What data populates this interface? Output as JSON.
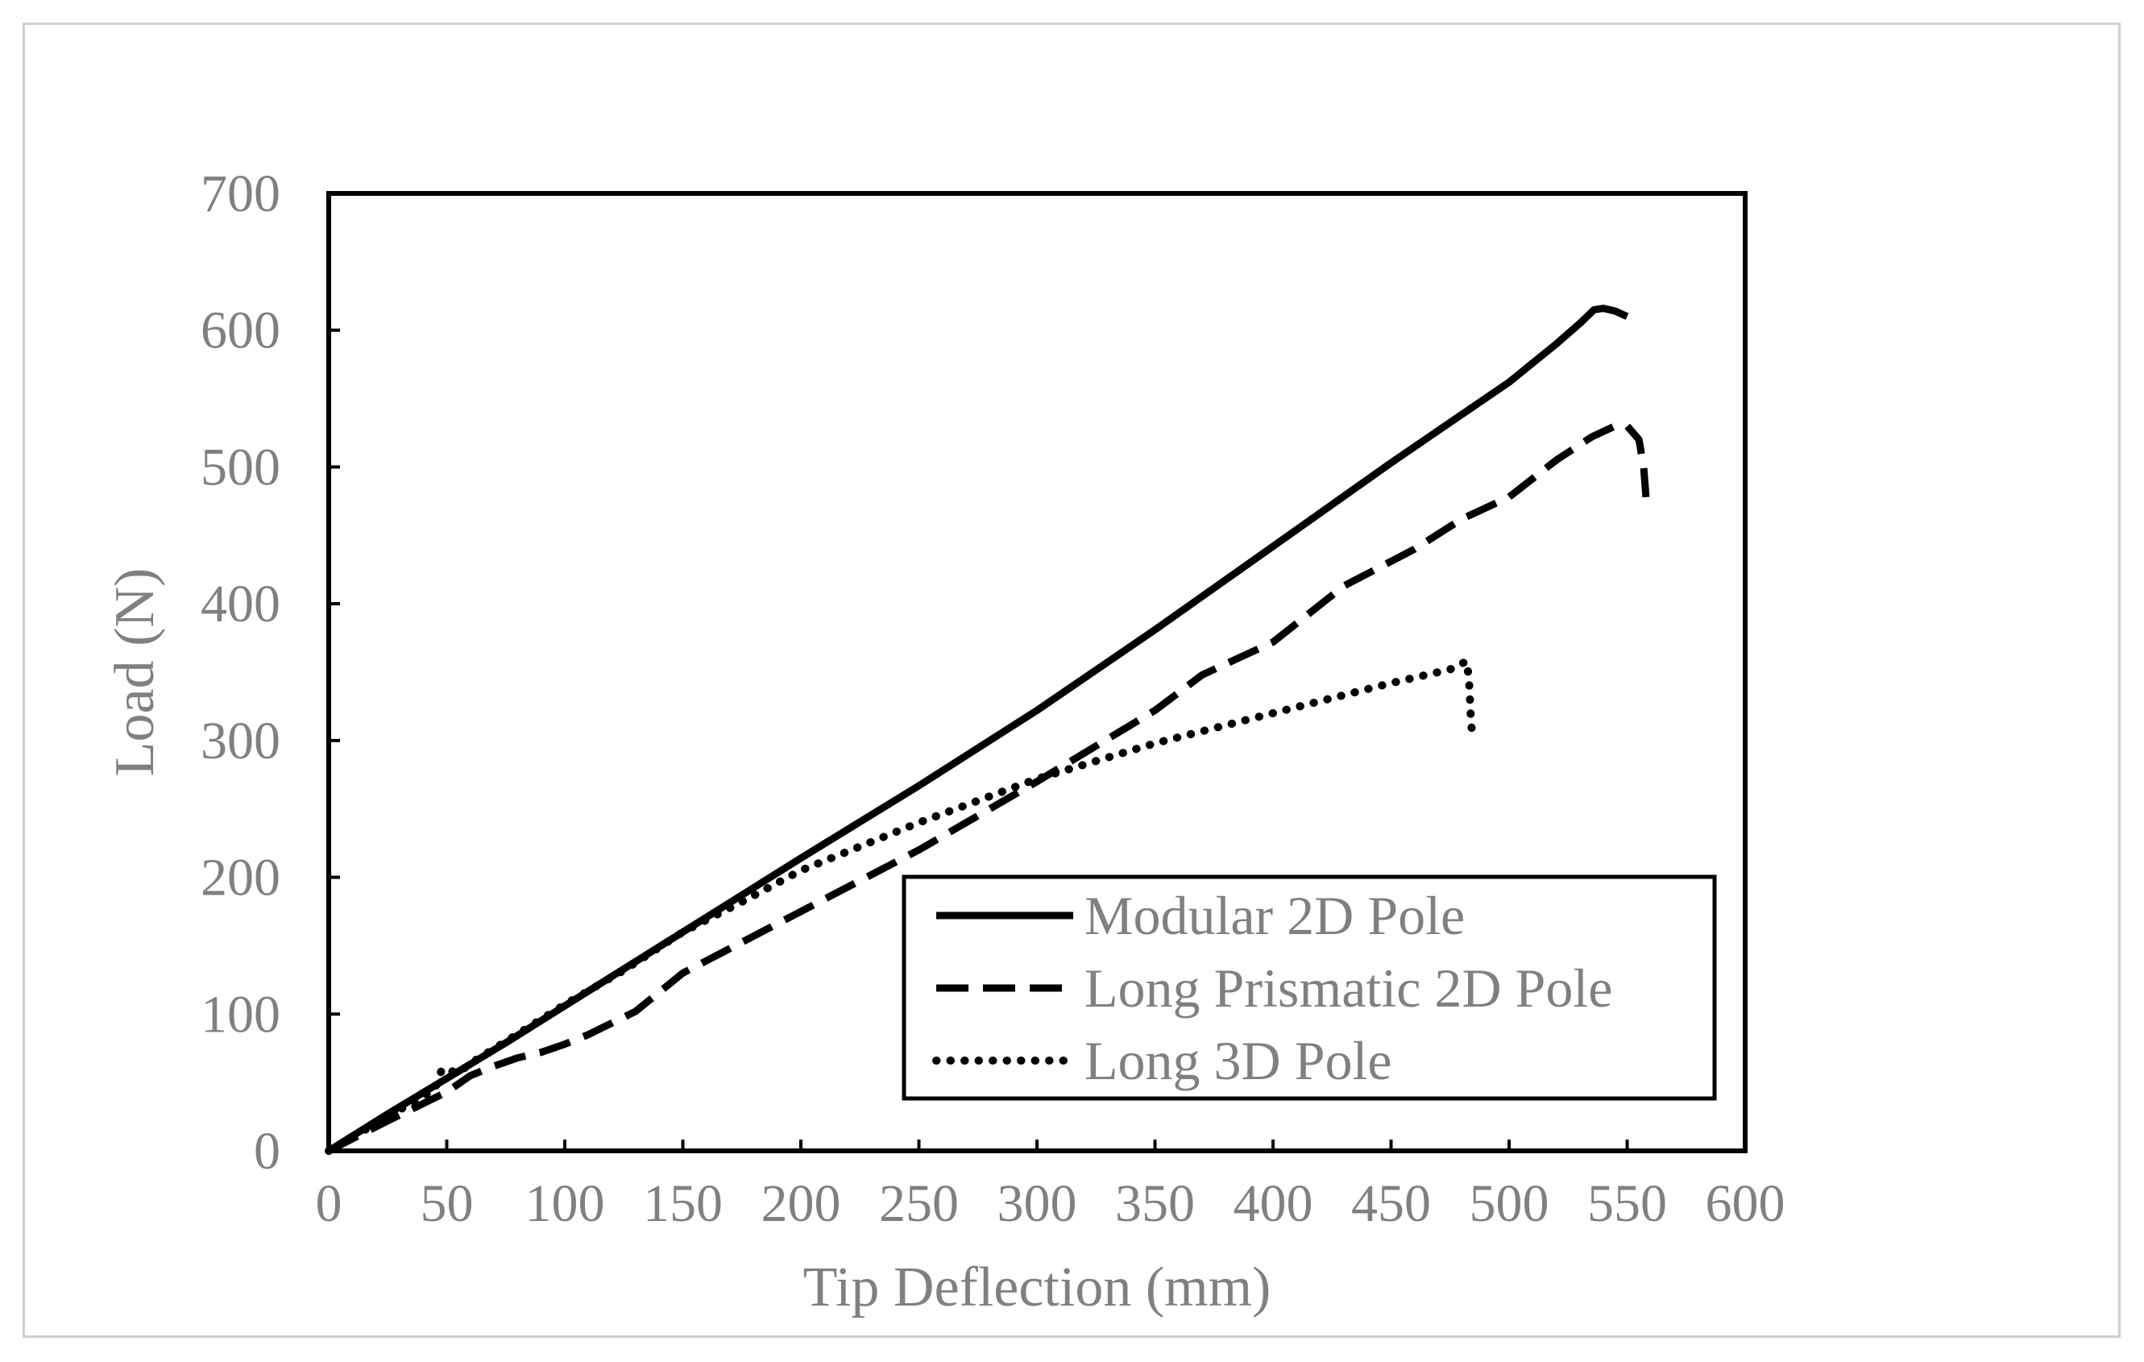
{
  "chart_data": {
    "type": "line",
    "xlabel": "Tip Deflection (mm)",
    "ylabel": "Load (N)",
    "xlim": [
      0,
      600
    ],
    "ylim": [
      0,
      700
    ],
    "xticks": [
      0,
      50,
      100,
      150,
      200,
      250,
      300,
      350,
      400,
      450,
      500,
      550,
      600
    ],
    "yticks": [
      0,
      100,
      200,
      300,
      400,
      500,
      600,
      700
    ],
    "grid": false,
    "legend_position": "bottom-right",
    "series": [
      {
        "name": "Modular 2D Pole",
        "style": "solid",
        "color": "#000000",
        "points": [
          [
            0,
            0
          ],
          [
            25,
            27
          ],
          [
            50,
            53
          ],
          [
            75,
            79
          ],
          [
            100,
            106
          ],
          [
            150,
            160
          ],
          [
            200,
            214
          ],
          [
            250,
            267
          ],
          [
            300,
            322
          ],
          [
            350,
            381
          ],
          [
            400,
            442
          ],
          [
            450,
            503
          ],
          [
            500,
            562
          ],
          [
            520,
            590
          ],
          [
            530,
            605
          ],
          [
            536,
            615
          ],
          [
            540,
            616
          ],
          [
            545,
            614
          ],
          [
            550,
            610
          ]
        ]
      },
      {
        "name": "Long Prismatic 2D Pole",
        "style": "dashed",
        "color": "#000000",
        "points": [
          [
            0,
            0
          ],
          [
            25,
            22
          ],
          [
            50,
            43
          ],
          [
            60,
            55
          ],
          [
            70,
            62
          ],
          [
            80,
            68
          ],
          [
            90,
            72
          ],
          [
            100,
            78
          ],
          [
            110,
            85
          ],
          [
            130,
            102
          ],
          [
            150,
            130
          ],
          [
            200,
            175
          ],
          [
            250,
            220
          ],
          [
            300,
            270
          ],
          [
            350,
            322
          ],
          [
            370,
            348
          ],
          [
            400,
            372
          ],
          [
            430,
            413
          ],
          [
            460,
            440
          ],
          [
            480,
            462
          ],
          [
            500,
            478
          ],
          [
            520,
            505
          ],
          [
            535,
            522
          ],
          [
            545,
            530
          ],
          [
            550,
            530
          ],
          [
            555,
            520
          ],
          [
            557,
            500
          ],
          [
            558,
            478
          ]
        ]
      },
      {
        "name": "Long 3D Pole",
        "style": "dotted",
        "color": "#000000",
        "points": [
          [
            0,
            0
          ],
          [
            20,
            20
          ],
          [
            35,
            35
          ],
          [
            45,
            45
          ],
          [
            48,
            60
          ],
          [
            55,
            57
          ],
          [
            60,
            64
          ],
          [
            75,
            80
          ],
          [
            100,
            107
          ],
          [
            125,
            132
          ],
          [
            150,
            160
          ],
          [
            175,
            182
          ],
          [
            200,
            205
          ],
          [
            250,
            240
          ],
          [
            300,
            272
          ],
          [
            350,
            298
          ],
          [
            400,
            320
          ],
          [
            450,
            342
          ],
          [
            470,
            350
          ],
          [
            475,
            352
          ],
          [
            482,
            358
          ],
          [
            483,
            345
          ],
          [
            484,
            310
          ],
          [
            485,
            305
          ]
        ]
      }
    ]
  }
}
